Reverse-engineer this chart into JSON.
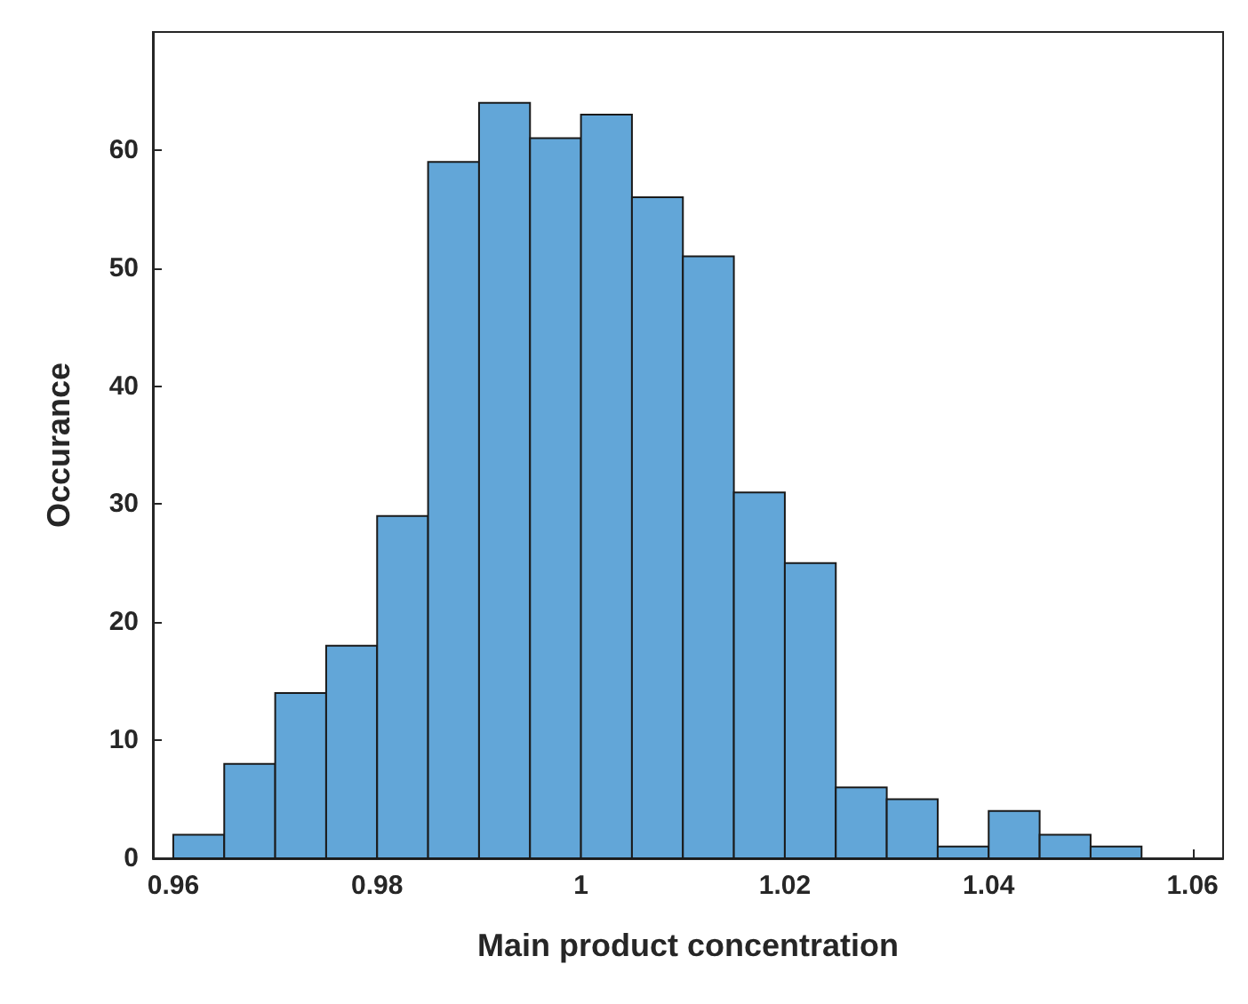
{
  "chart_data": {
    "type": "histogram",
    "xlabel": "Main product concentration",
    "ylabel": "Occurance",
    "color": "#62a6d8",
    "bins": [
      0.96,
      0.965,
      0.97,
      0.975,
      0.98,
      0.985,
      0.99,
      0.995,
      1.0,
      1.005,
      1.01,
      1.015,
      1.02,
      1.025,
      1.03,
      1.035,
      1.04,
      1.045,
      1.05,
      1.055
    ],
    "values": [
      2,
      8,
      14,
      18,
      29,
      59,
      64,
      61,
      63,
      56,
      51,
      31,
      25,
      6,
      5,
      1,
      4,
      2,
      1
    ],
    "xlim": [
      0.958,
      1.063
    ],
    "xticks": [
      0.96,
      0.98,
      1,
      1.02,
      1.04,
      1.06
    ],
    "ylim": [
      0,
      70
    ],
    "yticks": [
      0,
      10,
      20,
      30,
      40,
      50,
      60
    ],
    "grid": false
  }
}
